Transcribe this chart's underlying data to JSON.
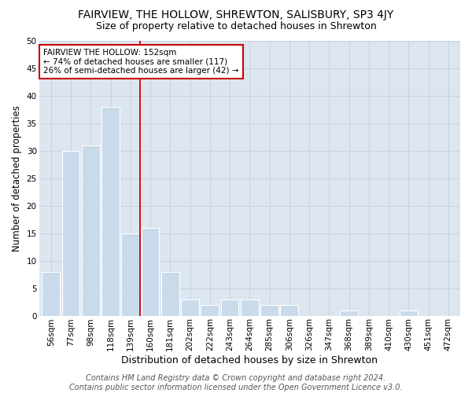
{
  "title": "FAIRVIEW, THE HOLLOW, SHREWTON, SALISBURY, SP3 4JY",
  "subtitle": "Size of property relative to detached houses in Shrewton",
  "xlabel": "Distribution of detached houses by size in Shrewton",
  "ylabel": "Number of detached properties",
  "footer_line1": "Contains HM Land Registry data © Crown copyright and database right 2024.",
  "footer_line2": "Contains public sector information licensed under the Open Government Licence v3.0.",
  "bar_labels": [
    "56sqm",
    "77sqm",
    "98sqm",
    "118sqm",
    "139sqm",
    "160sqm",
    "181sqm",
    "202sqm",
    "222sqm",
    "243sqm",
    "264sqm",
    "285sqm",
    "306sqm",
    "326sqm",
    "347sqm",
    "368sqm",
    "389sqm",
    "410sqm",
    "430sqm",
    "451sqm",
    "472sqm"
  ],
  "bar_values": [
    8,
    30,
    31,
    38,
    15,
    16,
    8,
    3,
    2,
    3,
    3,
    2,
    2,
    0,
    0,
    1,
    0,
    0,
    1,
    0,
    0
  ],
  "bar_color": "#c9daea",
  "bar_edge_color": "#ffffff",
  "bar_edge_width": 0.8,
  "vline_x_idx": 4.5,
  "vline_color": "#cc0000",
  "annotation_line1": "FAIRVIEW THE HOLLOW: 152sqm",
  "annotation_line2": "← 74% of detached houses are smaller (117)",
  "annotation_line3": "26% of semi-detached houses are larger (42) →",
  "annotation_box_color": "#ffffff",
  "annotation_box_edgecolor": "#cc0000",
  "annotation_fontsize": 7.5,
  "ylim": [
    0,
    50
  ],
  "yticks": [
    0,
    5,
    10,
    15,
    20,
    25,
    30,
    35,
    40,
    45,
    50
  ],
  "grid_color": "#c8d4e0",
  "bg_color": "#dde6f0",
  "title_fontsize": 10,
  "subtitle_fontsize": 9,
  "xlabel_fontsize": 9,
  "ylabel_fontsize": 8.5,
  "tick_fontsize": 7.5,
  "footer_fontsize": 7
}
